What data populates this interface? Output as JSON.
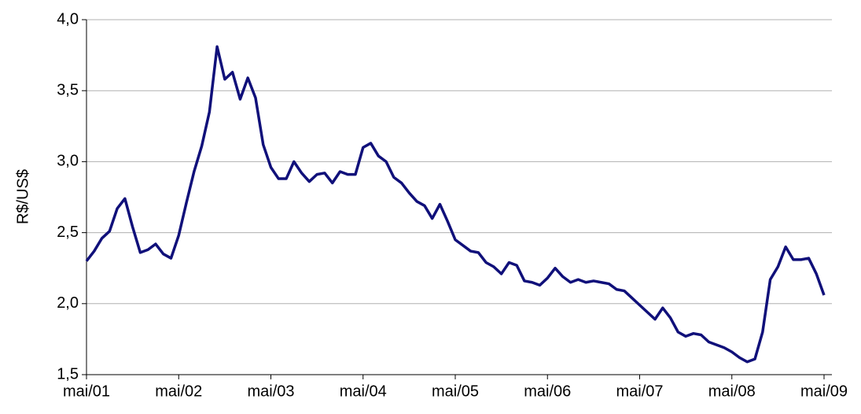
{
  "chart_data": {
    "type": "line",
    "ylabel": "R$/US$",
    "categories": [
      "mai/01",
      null,
      null,
      null,
      null,
      null,
      null,
      null,
      null,
      null,
      null,
      null,
      "mai/02",
      null,
      null,
      null,
      null,
      null,
      null,
      null,
      null,
      null,
      null,
      null,
      "mai/03",
      null,
      null,
      null,
      null,
      null,
      null,
      null,
      null,
      null,
      null,
      null,
      "mai/04",
      null,
      null,
      null,
      null,
      null,
      null,
      null,
      null,
      null,
      null,
      null,
      "mai/05",
      null,
      null,
      null,
      null,
      null,
      null,
      null,
      null,
      null,
      null,
      null,
      "mai/06",
      null,
      null,
      null,
      null,
      null,
      null,
      null,
      null,
      null,
      null,
      null,
      "mai/07",
      null,
      null,
      null,
      null,
      null,
      null,
      null,
      null,
      null,
      null,
      null,
      "mai/08",
      null,
      null,
      null,
      null,
      null,
      null,
      null,
      null,
      null,
      null,
      null,
      "mai/09"
    ],
    "series": [
      {
        "color": "#10107a",
        "values": [
          2.3,
          2.37,
          2.46,
          2.51,
          2.67,
          2.74,
          2.54,
          2.36,
          2.38,
          2.42,
          2.35,
          2.32,
          2.48,
          2.71,
          2.93,
          3.11,
          3.35,
          3.81,
          3.58,
          3.63,
          3.44,
          3.59,
          3.45,
          3.12,
          2.96,
          2.88,
          2.88,
          3.0,
          2.92,
          2.86,
          2.91,
          2.92,
          2.85,
          2.93,
          2.91,
          2.91,
          3.1,
          3.13,
          3.04,
          3.0,
          2.89,
          2.85,
          2.78,
          2.72,
          2.69,
          2.6,
          2.7,
          2.58,
          2.45,
          2.41,
          2.37,
          2.36,
          2.29,
          2.26,
          2.21,
          2.29,
          2.27,
          2.16,
          2.15,
          2.13,
          2.18,
          2.25,
          2.19,
          2.15,
          2.17,
          2.15,
          2.16,
          2.15,
          2.14,
          2.1,
          2.09,
          2.04,
          1.99,
          1.94,
          1.89,
          1.97,
          1.9,
          1.8,
          1.77,
          1.79,
          1.78,
          1.73,
          1.71,
          1.69,
          1.66,
          1.62,
          1.59,
          1.61,
          1.8,
          2.17,
          2.26,
          2.4,
          2.31,
          2.31,
          2.32,
          2.21,
          2.06
        ]
      }
    ],
    "ylim": [
      1.5,
      4.0
    ],
    "yticks": [
      {
        "value": 1.5,
        "label": "1,5"
      },
      {
        "value": 2.0,
        "label": "2,0"
      },
      {
        "value": 2.5,
        "label": "2,5"
      },
      {
        "value": 3.0,
        "label": "3,0"
      },
      {
        "value": 3.5,
        "label": "3,5"
      },
      {
        "value": 4.0,
        "label": "4,0"
      }
    ],
    "grid": true
  }
}
